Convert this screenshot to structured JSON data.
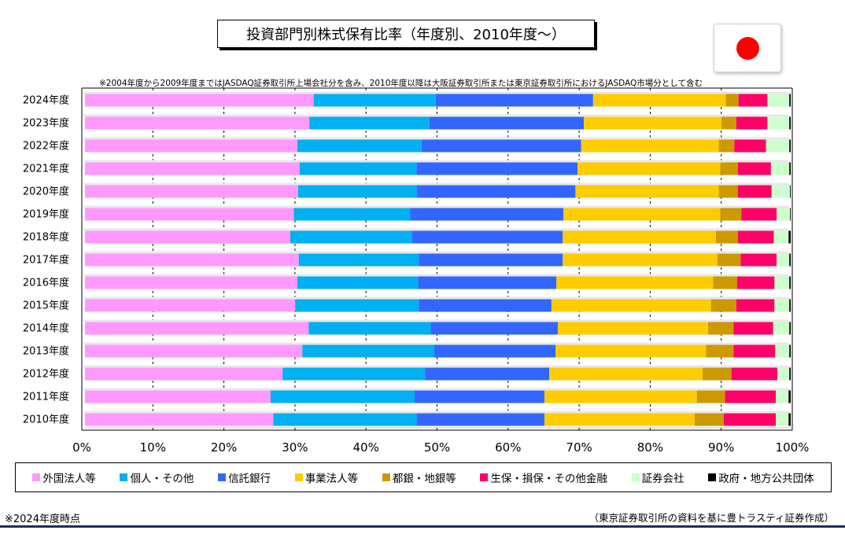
{
  "title": "投資部門別株式保有比率（年度別、2010年度～）",
  "note": "※2004年度から2009年度まではJASDAQ証券取引所上場会社分を含み、2010年度以降は大阪証券取引所または東京証券取引所におけるJASDAQ市場分として含む",
  "as_of": "※2024年度時点",
  "source": "（東京証券取引所の資料を基に豊トラスティ証券作成）",
  "flag": {
    "name": "japan-flag",
    "disc_color": "#ff0000"
  },
  "chart_data": {
    "type": "bar",
    "orientation": "horizontal",
    "stacked": "percent",
    "categories": [
      "2024年度",
      "2023年度",
      "2022年度",
      "2021年度",
      "2020年度",
      "2019年度",
      "2018年度",
      "2017年度",
      "2016年度",
      "2015年度",
      "2014年度",
      "2013年度",
      "2012年度",
      "2011年度",
      "2010年度"
    ],
    "xlim": [
      0,
      100
    ],
    "x_ticks": [
      "0%",
      "10%",
      "20%",
      "30%",
      "40%",
      "50%",
      "60%",
      "70%",
      "80%",
      "90%",
      "100%"
    ],
    "grid": true,
    "legend": "bottom",
    "series": [
      {
        "name": "外国法人等",
        "color": "#ff99ff",
        "values": [
          32.4,
          31.8,
          30.1,
          30.4,
          30.2,
          29.6,
          29.1,
          30.3,
          30.1,
          29.8,
          31.7,
          30.8,
          28.0,
          26.3,
          26.7
        ]
      },
      {
        "name": "個人・その他",
        "color": "#00b0f0",
        "values": [
          17.3,
          17.0,
          17.6,
          16.6,
          16.8,
          16.5,
          17.2,
          17.0,
          17.1,
          17.5,
          17.3,
          18.7,
          20.2,
          20.4,
          20.3
        ]
      },
      {
        "name": "信託銀行",
        "color": "#3366ff",
        "values": [
          22.3,
          21.9,
          22.6,
          22.8,
          22.5,
          21.7,
          21.4,
          20.4,
          19.6,
          18.8,
          18.0,
          17.2,
          17.6,
          18.4,
          18.1
        ]
      },
      {
        "name": "事業法人等",
        "color": "#ffcc00",
        "values": [
          18.8,
          19.5,
          19.5,
          20.2,
          20.3,
          22.2,
          21.7,
          21.9,
          22.2,
          22.6,
          21.3,
          21.3,
          21.7,
          21.6,
          21.3
        ]
      },
      {
        "name": "都銀・地銀等",
        "color": "#cc9900",
        "values": [
          1.8,
          2.1,
          2.2,
          2.5,
          2.7,
          3.0,
          3.1,
          3.3,
          3.4,
          3.6,
          3.6,
          3.9,
          4.1,
          4.0,
          4.1
        ]
      },
      {
        "name": "生保・損保・その他金融",
        "color": "#ff0066",
        "values": [
          4.1,
          4.4,
          4.5,
          4.7,
          4.8,
          5.0,
          5.1,
          5.1,
          5.3,
          5.4,
          5.6,
          5.9,
          6.5,
          7.2,
          7.4
        ]
      },
      {
        "name": "証券会社",
        "color": "#ccffcc",
        "values": [
          3.1,
          3.1,
          3.3,
          2.6,
          2.6,
          1.9,
          2.1,
          1.8,
          2.1,
          2.1,
          2.3,
          2.0,
          1.7,
          1.8,
          1.8
        ]
      },
      {
        "name": "政府・地方公共団体",
        "color": "#000000",
        "values": [
          0.2,
          0.2,
          0.2,
          0.2,
          0.1,
          0.1,
          0.3,
          0.2,
          0.2,
          0.2,
          0.2,
          0.2,
          0.2,
          0.3,
          0.3
        ]
      }
    ]
  }
}
